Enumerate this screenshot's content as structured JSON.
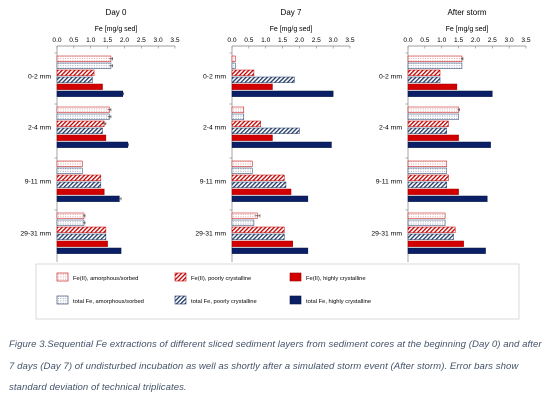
{
  "chart_data": {
    "type": "bar",
    "orientation": "horizontal",
    "xlabel": "Fe [mg/g sed]",
    "xlim": [
      0,
      3.5
    ],
    "xticks": [
      "0.0",
      "0.5",
      "1.0",
      "1.5",
      "2.0",
      "2.5",
      "3.0",
      "3.5"
    ],
    "categories": [
      "0-2 mm",
      "2-4 mm",
      "9-11 mm",
      "29-31 mm"
    ],
    "panels": [
      {
        "title": "Day 0",
        "series": [
          {
            "name": "Fe(II), amorphous/sorbed",
            "values": [
              1.6,
              1.55,
              0.75,
              0.8
            ],
            "errors": [
              0.05,
              0.05,
              0.0,
              0.03
            ]
          },
          {
            "name": "total Fe, amorphous/sorbed",
            "values": [
              1.6,
              1.55,
              0.75,
              0.8
            ],
            "errors": [
              0.05,
              0.05,
              0.0,
              0.03
            ]
          },
          {
            "name": "Fe(II), poorly crystalline",
            "values": [
              1.1,
              1.4,
              1.3,
              1.45
            ],
            "errors": [
              0.0,
              0.05,
              0.0,
              0.0
            ]
          },
          {
            "name": "total Fe, poorly crystalline",
            "values": [
              1.05,
              1.35,
              1.3,
              1.45
            ],
            "errors": [
              0.0,
              0.0,
              0.0,
              0.0
            ]
          },
          {
            "name": "Fe(II), highly crystalline",
            "values": [
              1.35,
              1.45,
              1.4,
              1.5
            ],
            "errors": [
              0.0,
              0.0,
              0.0,
              0.0
            ]
          },
          {
            "name": "total Fe, highly crystalline",
            "values": [
              1.95,
              2.1,
              1.85,
              1.9
            ],
            "errors": [
              0.03,
              0.02,
              0.05,
              0.0
            ]
          }
        ]
      },
      {
        "title": "Day 7",
        "series": [
          {
            "name": "Fe(II), amorphous/sorbed",
            "values": [
              0.1,
              0.35,
              0.6,
              0.75
            ],
            "errors": [
              0.0,
              0.0,
              0.0,
              0.08
            ]
          },
          {
            "name": "total Fe, amorphous/sorbed",
            "values": [
              0.1,
              0.35,
              0.6,
              0.65
            ],
            "errors": [
              0.0,
              0.0,
              0.0,
              0.0
            ]
          },
          {
            "name": "Fe(II), poorly crystalline",
            "values": [
              0.65,
              0.85,
              1.55,
              1.55
            ],
            "errors": [
              0.0,
              0.0,
              0.0,
              0.0
            ]
          },
          {
            "name": "total Fe, poorly crystalline",
            "values": [
              1.85,
              2.0,
              1.6,
              1.55
            ],
            "errors": [
              0.0,
              0.0,
              0.0,
              0.0
            ]
          },
          {
            "name": "Fe(II), highly crystalline",
            "values": [
              1.2,
              1.2,
              1.75,
              1.8
            ],
            "errors": [
              0.0,
              0.0,
              0.0,
              0.0
            ]
          },
          {
            "name": "total Fe, highly crystalline",
            "values": [
              3.0,
              2.95,
              2.25,
              2.25
            ],
            "errors": [
              0.0,
              0.0,
              0.0,
              0.0
            ]
          }
        ]
      },
      {
        "title": "After storm",
        "series": [
          {
            "name": "Fe(II), amorphous/sorbed",
            "values": [
              1.6,
              1.5,
              1.15,
              1.1
            ],
            "errors": [
              0.03,
              0.03,
              0.0,
              0.0
            ]
          },
          {
            "name": "total Fe, amorphous/sorbed",
            "values": [
              1.6,
              1.5,
              1.15,
              1.1
            ],
            "errors": [
              0.0,
              0.0,
              0.0,
              0.0
            ]
          },
          {
            "name": "Fe(II), poorly crystalline",
            "values": [
              0.95,
              1.2,
              1.2,
              1.4
            ],
            "errors": [
              0.0,
              0.0,
              0.0,
              0.0
            ]
          },
          {
            "name": "total Fe, poorly crystalline",
            "values": [
              0.95,
              1.15,
              1.15,
              1.35
            ],
            "errors": [
              0.0,
              0.0,
              0.0,
              0.0
            ]
          },
          {
            "name": "Fe(II), highly crystalline",
            "values": [
              1.45,
              1.5,
              1.5,
              1.65
            ],
            "errors": [
              0.0,
              0.0,
              0.0,
              0.0
            ]
          },
          {
            "name": "total Fe, highly crystalline",
            "values": [
              2.5,
              2.45,
              2.35,
              2.3
            ],
            "errors": [
              0.0,
              0.0,
              0.0,
              0.0
            ]
          }
        ]
      }
    ],
    "legend": {
      "placement": "bottom",
      "entries": [
        {
          "name": "Fe(II), amorphous/sorbed",
          "pattern": "dots",
          "color": "#d9a0a0",
          "border": "#c00000"
        },
        {
          "name": "Fe(II), poorly crystalline",
          "pattern": "diagonal",
          "color": "#c00000",
          "border": "#c00000"
        },
        {
          "name": "Fe(II), highly crystalline",
          "pattern": "solid",
          "color": "#d20000",
          "border": "#a00000"
        },
        {
          "name": "total Fe, amorphous/sorbed",
          "pattern": "dots",
          "color": "#8898b8",
          "border": "#203864"
        },
        {
          "name": "total Fe, poorly crystalline",
          "pattern": "diagonal",
          "color": "#203864",
          "border": "#203864"
        },
        {
          "name": "total Fe, highly crystalline",
          "pattern": "solid",
          "color": "#0a1f66",
          "border": "#061440"
        }
      ]
    },
    "grid": false
  },
  "caption": "Figure 3.Sequential Fe extractions of different sliced sediment layers from sediment cores at the beginning (Day 0) and after 7 days (Day 7) of undisturbed incubation as well as shortly after a simulated storm event (After storm). Error bars show standard deviation of technical triplicates."
}
